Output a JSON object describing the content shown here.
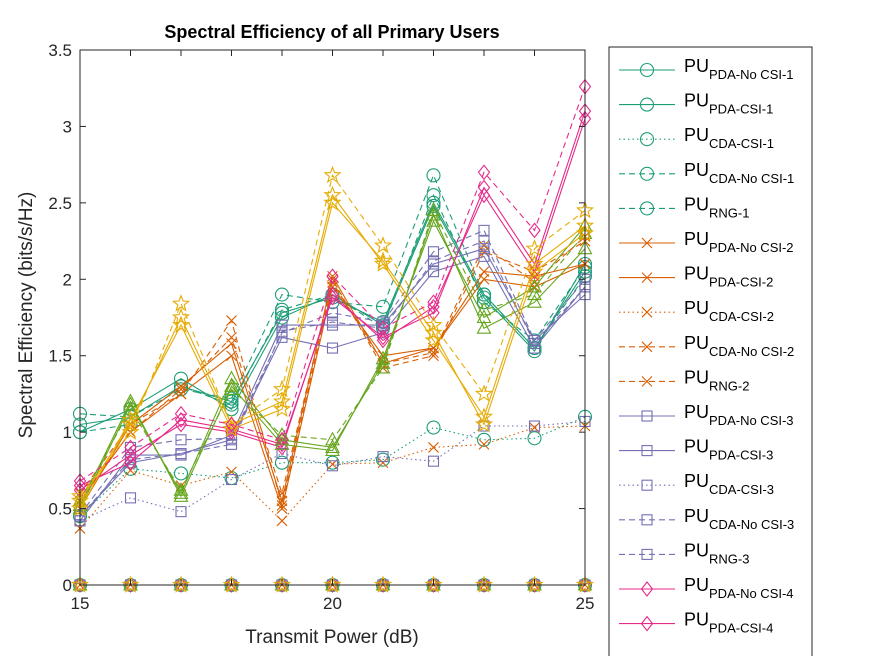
{
  "chart_data": {
    "type": "line",
    "title": "Spectral Efficiency of all Primary Users",
    "xlabel": "Transmit Power (dB)",
    "ylabel": "Spectral Efficiency (bits/s/Hz)",
    "xlim": [
      15,
      25
    ],
    "ylim": [
      0,
      3.5
    ],
    "xticks": [
      "15",
      "20",
      "25"
    ],
    "yticks": [
      "0",
      "0.5",
      "1",
      "1.5",
      "2",
      "2.5",
      "3",
      "3.5"
    ],
    "grid": false,
    "legend_position": "outside-right",
    "x": [
      15,
      16,
      17,
      18,
      19,
      20,
      21,
      22,
      23,
      24,
      25
    ],
    "series": [
      {
        "name": "PU",
        "sub": "PDA-No CSI-1",
        "color": "#1b9e77",
        "dash": "solid",
        "marker": "circle",
        "values": [
          1.05,
          1.1,
          1.3,
          1.2,
          1.78,
          1.88,
          1.72,
          2.5,
          1.9,
          1.55,
          2.05
        ]
      },
      {
        "name": "PU",
        "sub": "PDA-CSI-1",
        "color": "#1b9e77",
        "dash": "solid",
        "marker": "circle",
        "values": [
          1.0,
          1.15,
          1.35,
          1.15,
          1.75,
          1.9,
          1.7,
          2.48,
          1.88,
          1.53,
          2.1
        ]
      },
      {
        "name": "PU",
        "sub": "CDA-CSI-1",
        "color": "#1b9e77",
        "dash": "dotted",
        "marker": "circle",
        "values": [
          0.45,
          0.76,
          0.73,
          0.7,
          0.8,
          0.8,
          0.82,
          1.03,
          0.95,
          0.96,
          1.1
        ]
      },
      {
        "name": "PU",
        "sub": "CDA-No CSI-1",
        "color": "#1b9e77",
        "dash": "dashed",
        "marker": "circle",
        "values": [
          1.12,
          1.1,
          1.28,
          1.22,
          1.9,
          1.85,
          1.82,
          2.68,
          1.9,
          1.55,
          2.02
        ]
      },
      {
        "name": "PU",
        "sub": "RNG-1",
        "color": "#1b9e77",
        "dash": "dashed",
        "marker": "circle",
        "values": [
          1.0,
          1.05,
          1.3,
          1.18,
          1.8,
          1.9,
          1.68,
          2.55,
          1.85,
          1.6,
          2.08
        ]
      },
      {
        "name": "PU",
        "sub": "PDA-No CSI-2",
        "color": "#d95f02",
        "dash": "solid",
        "marker": "cross",
        "values": [
          0.5,
          1.05,
          1.3,
          1.58,
          0.55,
          2.02,
          1.45,
          1.55,
          2.05,
          2.02,
          2.1
        ]
      },
      {
        "name": "PU",
        "sub": "PDA-CSI-2",
        "color": "#d95f02",
        "dash": "solid",
        "marker": "cross",
        "values": [
          0.55,
          1.0,
          1.25,
          1.5,
          0.5,
          1.95,
          1.5,
          1.55,
          2.0,
          1.95,
          2.1
        ]
      },
      {
        "name": "PU",
        "sub": "CDA-CSI-2",
        "color": "#d95f02",
        "dash": "dotted",
        "marker": "cross",
        "values": [
          0.37,
          0.75,
          0.65,
          0.74,
          0.42,
          0.79,
          0.8,
          0.9,
          0.92,
          1.03,
          1.04
        ]
      },
      {
        "name": "PU",
        "sub": "CDA-No CSI-2",
        "color": "#d95f02",
        "dash": "dashed",
        "marker": "cross",
        "values": [
          0.6,
          1.05,
          1.25,
          1.73,
          0.52,
          1.98,
          1.45,
          1.52,
          2.22,
          1.98,
          2.28
        ]
      },
      {
        "name": "PU",
        "sub": "RNG-2",
        "color": "#d95f02",
        "dash": "dashed",
        "marker": "cross",
        "values": [
          0.55,
          1.0,
          1.28,
          1.62,
          0.6,
          2.0,
          1.42,
          1.5,
          2.18,
          2.05,
          2.25
        ]
      },
      {
        "name": "PU",
        "sub": "PDA-No CSI-3",
        "color": "#7570b3",
        "dash": "solid",
        "marker": "square",
        "values": [
          0.45,
          0.8,
          0.86,
          0.95,
          1.62,
          1.55,
          1.65,
          2.05,
          2.15,
          1.55,
          1.95
        ]
      },
      {
        "name": "PU",
        "sub": "PDA-CSI-3",
        "color": "#7570b3",
        "dash": "solid",
        "marker": "square",
        "values": [
          0.42,
          0.85,
          0.85,
          0.98,
          1.7,
          1.7,
          1.7,
          2.1,
          2.2,
          1.6,
          1.9
        ]
      },
      {
        "name": "PU",
        "sub": "CDA-CSI-3",
        "color": "#7570b3",
        "dash": "dotted",
        "marker": "square",
        "values": [
          0.42,
          0.57,
          0.48,
          0.69,
          0.86,
          0.78,
          0.84,
          0.81,
          1.04,
          1.04,
          1.07
        ]
      },
      {
        "name": "PU",
        "sub": "CDA-No CSI-3",
        "color": "#7570b3",
        "dash": "dashed",
        "marker": "square",
        "values": [
          0.46,
          0.9,
          0.95,
          0.96,
          1.65,
          1.78,
          1.72,
          2.18,
          2.32,
          1.6,
          2.0
        ]
      },
      {
        "name": "PU",
        "sub": "RNG-3",
        "color": "#7570b3",
        "dash": "dashed",
        "marker": "square",
        "values": [
          0.45,
          0.82,
          0.86,
          0.92,
          1.66,
          1.72,
          1.68,
          2.12,
          2.25,
          1.58,
          1.95
        ]
      },
      {
        "name": "PU",
        "sub": "PDA-No CSI-4",
        "color": "#e7298a",
        "dash": "solid",
        "marker": "diamond",
        "values": [
          0.62,
          0.85,
          1.05,
          1.0,
          0.9,
          1.9,
          1.6,
          1.82,
          2.55,
          2.05,
          3.05
        ]
      },
      {
        "name": "PU",
        "sub": "PDA-CSI-4",
        "color": "#e7298a",
        "dash": "solid",
        "marker": "diamond",
        "values": [
          0.65,
          0.8,
          1.08,
          1.02,
          0.92,
          1.88,
          1.62,
          1.78,
          2.6,
          2.1,
          3.1
        ]
      }
    ],
    "hidden_series": [
      {
        "color": "#66a61e",
        "dash": "solid",
        "marker": "triangle",
        "values": [
          0.5,
          1.18,
          0.6,
          1.35,
          0.95,
          0.9,
          1.45,
          2.42,
          1.68,
          1.85,
          2.2
        ]
      },
      {
        "color": "#66a61e",
        "dash": "dashed",
        "marker": "triangle",
        "values": [
          0.55,
          1.15,
          0.62,
          1.28,
          0.98,
          0.95,
          1.42,
          2.45,
          1.8,
          1.9,
          2.3
        ]
      },
      {
        "color": "#66a61e",
        "dash": "solid",
        "marker": "triangle",
        "values": [
          0.52,
          1.2,
          0.58,
          1.3,
          0.92,
          0.88,
          1.48,
          2.38,
          1.75,
          1.95,
          2.35
        ]
      },
      {
        "color": "#e6ab02",
        "dash": "solid",
        "marker": "star",
        "values": [
          0.55,
          1.05,
          1.75,
          1.05,
          1.2,
          2.55,
          2.1,
          1.6,
          1.1,
          2.1,
          2.35
        ]
      },
      {
        "color": "#e6ab02",
        "dash": "dashed",
        "marker": "star",
        "values": [
          0.58,
          1.0,
          1.84,
          1.05,
          1.28,
          2.68,
          2.22,
          1.7,
          1.25,
          2.2,
          2.45
        ]
      },
      {
        "color": "#e6ab02",
        "dash": "solid",
        "marker": "star",
        "values": [
          0.5,
          1.08,
          1.7,
          1.02,
          1.15,
          2.5,
          2.12,
          1.65,
          1.05,
          2.05,
          2.3
        ]
      },
      {
        "color": "#e7298a",
        "dash": "dashed",
        "marker": "diamond",
        "values": [
          0.68,
          0.9,
          1.12,
          1.05,
          0.95,
          2.02,
          1.68,
          1.85,
          2.7,
          2.32,
          3.26
        ]
      }
    ],
    "zero_lines_colors": [
      "#1b9e77",
      "#d95f02",
      "#7570b3",
      "#e7298a",
      "#66a61e",
      "#e6ab02"
    ]
  }
}
